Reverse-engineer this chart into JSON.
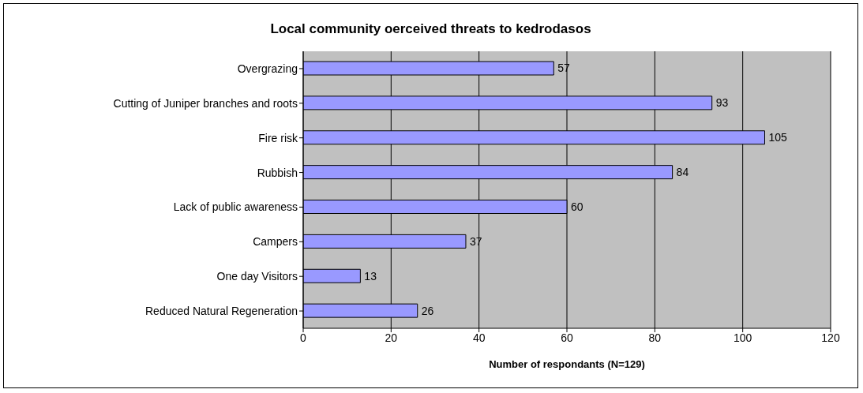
{
  "chart_data": {
    "type": "bar",
    "orientation": "horizontal",
    "title": "Local community oerceived threats to kedrodasos",
    "xlabel": "Number of respondants (N=129)",
    "categories": [
      "Overgrazing",
      "Cutting of Juniper branches and roots",
      "Fire risk",
      "Rubbish",
      "Lack of public awareness",
      "Campers",
      "One day Visitors",
      "Reduced Natural Regeneration"
    ],
    "values": [
      57,
      93,
      105,
      84,
      60,
      37,
      13,
      26
    ],
    "color": "#9999ff",
    "xlim": [
      0,
      120
    ],
    "xticks": [
      0,
      20,
      40,
      60,
      80,
      100,
      120
    ],
    "grid": "x",
    "data_labels": true
  }
}
